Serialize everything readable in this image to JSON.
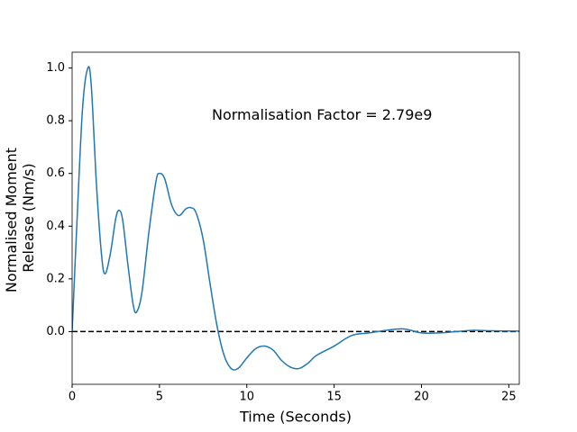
{
  "chart_data": {
    "type": "line",
    "xlabel": "Time (Seconds)",
    "ylabel": [
      "Normalised Moment",
      "Release (Nm/s)"
    ],
    "annotation": {
      "text": "Normalisation Factor = 2.79e9",
      "x": 8,
      "y": 0.82
    },
    "xlim": [
      0,
      25.6
    ],
    "ylim": [
      -0.2,
      1.06
    ],
    "xticks": [
      0,
      5,
      10,
      15,
      20,
      25
    ],
    "yticks": [
      {
        "value": 0,
        "label": "0.0"
      },
      {
        "value": 0.2,
        "label": "0.2"
      },
      {
        "value": 0.4,
        "label": "0.4"
      },
      {
        "value": 0.6,
        "label": "0.6"
      },
      {
        "value": 0.8,
        "label": "0.8"
      },
      {
        "value": 1,
        "label": "1.0"
      }
    ],
    "hlines": [
      {
        "y": 0,
        "color": "#000000",
        "style": "dashed"
      }
    ],
    "series": [
      {
        "color": "#1f77b4",
        "x": [
          0,
          0.3,
          0.6,
          0.9,
          1.1,
          1.4,
          1.7,
          1.9,
          2.2,
          2.5,
          2.7,
          2.9,
          3.2,
          3.5,
          3.7,
          4.0,
          4.4,
          4.8,
          5.0,
          5.3,
          5.7,
          6.1,
          6.5,
          6.8,
          7.1,
          7.5,
          7.9,
          8.3,
          8.7,
          9.1,
          9.5,
          10.0,
          10.5,
          11.0,
          11.5,
          12.0,
          12.5,
          13.0,
          13.5,
          14.0,
          15.0,
          16.0,
          17.0,
          18.0,
          19.0,
          20.0,
          21.0,
          22.0,
          23.0,
          24.0,
          25.6
        ],
        "values": [
          0.0,
          0.45,
          0.85,
          1.0,
          0.93,
          0.55,
          0.28,
          0.22,
          0.3,
          0.43,
          0.46,
          0.42,
          0.25,
          0.1,
          0.075,
          0.15,
          0.38,
          0.57,
          0.6,
          0.58,
          0.48,
          0.44,
          0.465,
          0.47,
          0.45,
          0.35,
          0.18,
          0.02,
          -0.09,
          -0.14,
          -0.14,
          -0.1,
          -0.065,
          -0.055,
          -0.07,
          -0.11,
          -0.135,
          -0.14,
          -0.12,
          -0.09,
          -0.055,
          -0.015,
          -0.005,
          0.005,
          0.01,
          -0.005,
          -0.005,
          0.0,
          0.005,
          0.003,
          0.002
        ]
      }
    ]
  }
}
